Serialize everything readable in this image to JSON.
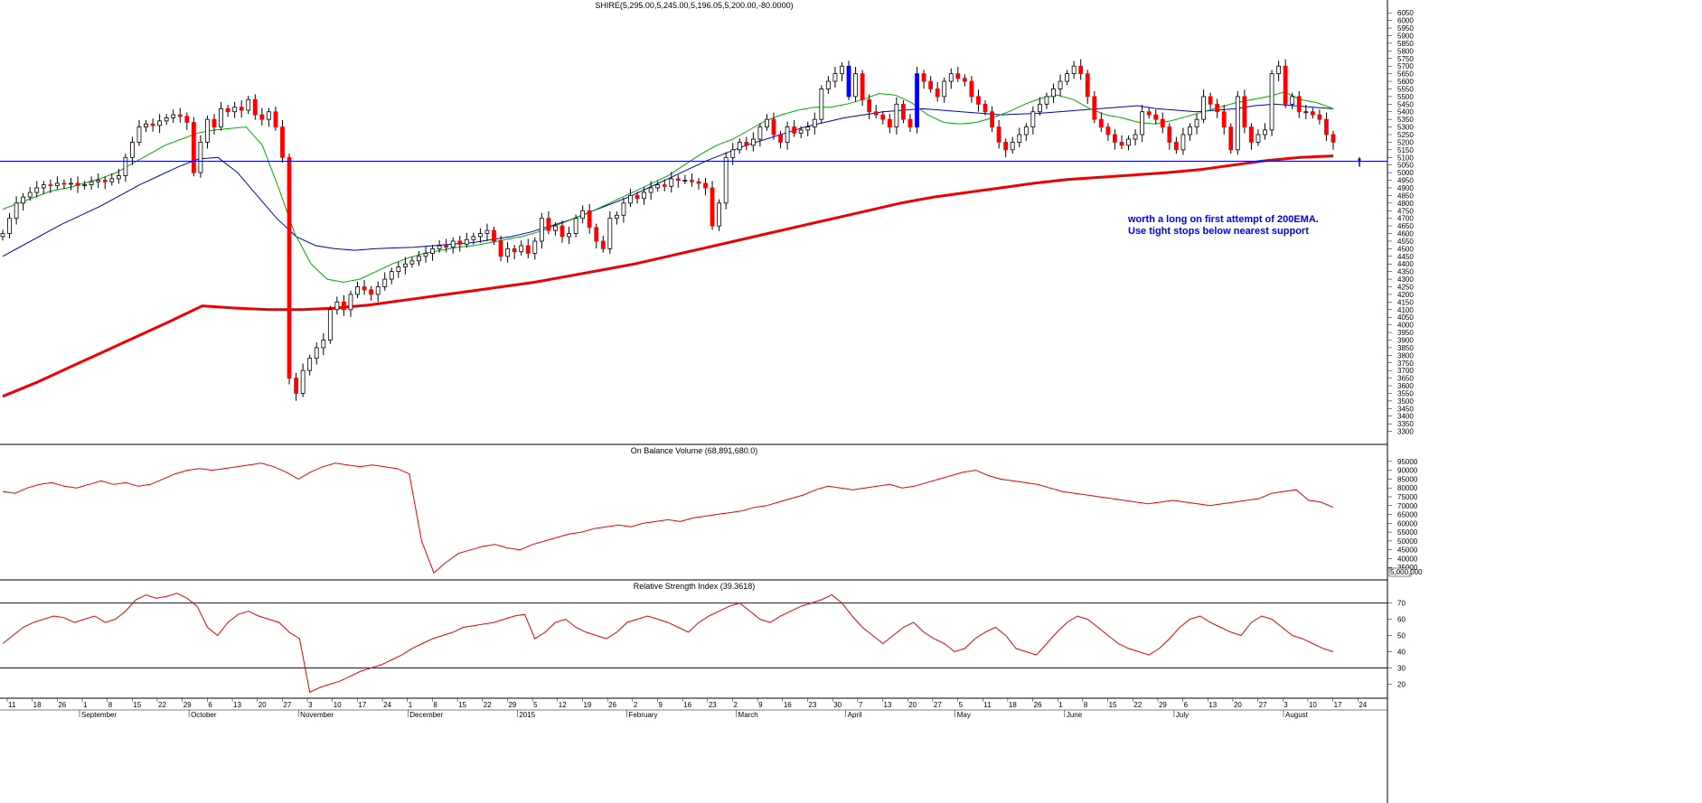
{
  "chart_data": [
    {
      "type": "candlestick",
      "title": "SHIRE(5,295.00,5,245.00,5,196.05,5,200.00,-80.0000)",
      "ylim": [
        3250,
        6075
      ],
      "y_ticks": [
        3300,
        3350,
        3400,
        3450,
        3500,
        3550,
        3600,
        3650,
        3700,
        3750,
        3800,
        3850,
        3900,
        3950,
        4000,
        4050,
        4100,
        4150,
        4200,
        4250,
        4300,
        4350,
        4400,
        4450,
        4500,
        4550,
        4600,
        4650,
        4700,
        4750,
        4800,
        4850,
        4900,
        4950,
        5000,
        5050,
        5100,
        5150,
        5200,
        5250,
        5300,
        5350,
        5400,
        5450,
        5500,
        5550,
        5600,
        5650,
        5700,
        5750,
        5800,
        5850,
        5900,
        5950,
        6000,
        6050
      ],
      "support_level": 5075,
      "annotation": [
        "worth a long on first attempt of 200EMA.",
        "Use tight stops below nearest support"
      ],
      "colors": {
        "up": "#ffffff",
        "down": "#ff0000",
        "outline": "#000000",
        "ema_fast": "#00aa00",
        "ema_slow": "#0000cc",
        "ema_200": "#ee0000",
        "support": "#0000cc",
        "highlight": "#0000ff"
      },
      "closes": [
        4600,
        4700,
        4800,
        4840,
        4870,
        4900,
        4920,
        4915,
        4930,
        4925,
        4930,
        4915,
        4920,
        4940,
        4950,
        4940,
        4960,
        4980,
        5100,
        5200,
        5300,
        5320,
        5310,
        5340,
        5360,
        5380,
        5370,
        5330,
        5000,
        5200,
        5350,
        5300,
        5420,
        5400,
        5430,
        5410,
        5480,
        5380,
        5350,
        5400,
        5300,
        5100,
        3650,
        3550,
        3700,
        3780,
        3850,
        3900,
        4100,
        4150,
        4100,
        4200,
        4250,
        4230,
        4200,
        4250,
        4300,
        4350,
        4380,
        4400,
        4420,
        4450,
        4470,
        4500,
        4520,
        4510,
        4550,
        4530,
        4560,
        4580,
        4600,
        4620,
        4550,
        4450,
        4500,
        4480,
        4520,
        4470,
        4550,
        4700,
        4620,
        4650,
        4580,
        4600,
        4700,
        4750,
        4640,
        4550,
        4500,
        4700,
        4720,
        4800,
        4850,
        4830,
        4870,
        4900,
        4920,
        4910,
        4960,
        4950,
        4950,
        4940,
        4930,
        4900,
        4650,
        4800,
        5100,
        5150,
        5200,
        5180,
        5220,
        5300,
        5350,
        5250,
        5200,
        5300,
        5260,
        5280,
        5300,
        5350,
        5550,
        5600,
        5650,
        5700,
        5500,
        5650,
        5480,
        5400,
        5380,
        5350,
        5300,
        5450,
        5350,
        5300,
        5650,
        5600,
        5550,
        5500,
        5600,
        5650,
        5620,
        5600,
        5500,
        5450,
        5400,
        5300,
        5200,
        5150,
        5200,
        5250,
        5300,
        5400,
        5450,
        5500,
        5550,
        5600,
        5650,
        5700,
        5650,
        5500,
        5350,
        5300,
        5250,
        5200,
        5180,
        5220,
        5250,
        5400,
        5380,
        5350,
        5300,
        5200,
        5150,
        5250,
        5300,
        5350,
        5500,
        5450,
        5400,
        5300,
        5150,
        5500,
        5300,
        5200,
        5250,
        5280,
        5650,
        5700,
        5450,
        5500,
        5400,
        5400,
        5380,
        5350,
        5250,
        5200
      ],
      "ema_fast": [
        4760,
        4800,
        4840,
        4880,
        4900,
        4930,
        4960,
        5000,
        5060,
        5120,
        5180,
        5220,
        5260,
        5280,
        5290,
        5300,
        5180,
        4900,
        4600,
        4400,
        4300,
        4280,
        4300,
        4350,
        4400,
        4440,
        4470,
        4490,
        4510,
        4520,
        4540,
        4560,
        4580,
        4610,
        4650,
        4690,
        4730,
        4780,
        4830,
        4880,
        4930,
        4980,
        5050,
        5120,
        5180,
        5220,
        5280,
        5340,
        5380,
        5410,
        5430,
        5430,
        5450,
        5480,
        5520,
        5510,
        5460,
        5380,
        5330,
        5320,
        5330,
        5360,
        5400,
        5450,
        5490,
        5510,
        5480,
        5420,
        5380,
        5360,
        5330,
        5320,
        5340,
        5370,
        5400,
        5430,
        5460,
        5480,
        5500,
        5530,
        5480,
        5460,
        5420
      ],
      "ema_slow": [
        4450,
        4520,
        4590,
        4660,
        4720,
        4780,
        4850,
        4920,
        4980,
        5040,
        5090,
        5100,
        5000,
        4850,
        4700,
        4580,
        4520,
        4500,
        4490,
        4500,
        4505,
        4510,
        4520,
        4530,
        4540,
        4560,
        4580,
        4610,
        4650,
        4690,
        4740,
        4790,
        4840,
        4900,
        4960,
        5020,
        5080,
        5130,
        5180,
        5220,
        5260,
        5300,
        5330,
        5360,
        5380,
        5400,
        5410,
        5420,
        5410,
        5400,
        5390,
        5380,
        5385,
        5390,
        5400,
        5410,
        5420,
        5430,
        5440,
        5420,
        5410,
        5400,
        5410,
        5420,
        5440,
        5450,
        5440,
        5430,
        5420
      ],
      "ema_200": [
        3530,
        3620,
        3720,
        3820,
        3920,
        4020,
        4125,
        4110,
        4100,
        4100,
        4110,
        4130,
        4160,
        4190,
        4220,
        4250,
        4280,
        4320,
        4360,
        4400,
        4450,
        4500,
        4550,
        4600,
        4650,
        4700,
        4750,
        4800,
        4840,
        4870,
        4900,
        4930,
        4955,
        4970,
        4985,
        5000,
        5020,
        5050,
        5080,
        5100,
        5110
      ],
      "month_labels": [
        "September",
        "October",
        "November",
        "December",
        "2015",
        "February",
        "March",
        "April",
        "May",
        "June",
        "July",
        "August"
      ],
      "day_labels": [
        "11",
        "18",
        "26",
        "1",
        "8",
        "15",
        "22",
        "29",
        "6",
        "13",
        "20",
        "27",
        "3",
        "10",
        "17",
        "24",
        "1",
        "8",
        "15",
        "22",
        "29",
        "5",
        "12",
        "19",
        "26",
        "2",
        "9",
        "16",
        "23",
        "2",
        "9",
        "16",
        "23",
        "30",
        "7",
        "13",
        "20",
        "27",
        "5",
        "11",
        "18",
        "26",
        "1",
        "8",
        "15",
        "22",
        "29",
        "6",
        "13",
        "20",
        "27",
        "3",
        "10",
        "17",
        "24"
      ]
    },
    {
      "type": "line",
      "title": "On Balance Volume (68,891,680.0)",
      "ylim": [
        30000,
        98000
      ],
      "y_ticks": [
        35000,
        40000,
        45000,
        50000,
        55000,
        60000,
        65000,
        70000,
        75000,
        80000,
        85000,
        90000,
        95000
      ],
      "y_tick_labels": [
        "35000",
        "40000",
        "45000",
        "50000",
        "55000",
        "60000",
        "65000",
        "70000",
        "75000",
        "80000",
        "85000",
        "90000",
        "95000"
      ],
      "bottom_tick_label": "5,000,000",
      "values": [
        78000,
        77000,
        80000,
        82000,
        83000,
        81000,
        80000,
        82000,
        84000,
        82000,
        83000,
        81000,
        82000,
        85000,
        88000,
        90000,
        91000,
        90000,
        91000,
        92000,
        93000,
        94000,
        92000,
        89000,
        85000,
        89000,
        92000,
        94000,
        93000,
        92000,
        93000,
        92000,
        91000,
        88000,
        50000,
        32000,
        38000,
        43000,
        45000,
        47000,
        48000,
        46000,
        45000,
        48000,
        50000,
        52000,
        54000,
        55000,
        57000,
        58000,
        59000,
        58000,
        60000,
        61000,
        62000,
        61000,
        63000,
        64000,
        65000,
        66000,
        67000,
        69000,
        70000,
        72000,
        74000,
        76000,
        79000,
        81000,
        80000,
        79000,
        80000,
        81000,
        82000,
        80000,
        81000,
        83000,
        85000,
        87000,
        89000,
        90000,
        87000,
        85000,
        84000,
        83000,
        82000,
        80000,
        78000,
        77000,
        76000,
        75000,
        74000,
        73000,
        72000,
        71000,
        72000,
        73000,
        72000,
        71000,
        70000,
        71000,
        72000,
        73000,
        74000,
        77000,
        78000,
        79000,
        73000,
        72000,
        69000
      ]
    },
    {
      "type": "line",
      "title": "Relative Strength Index (39.3618)",
      "ylim": [
        13,
        77
      ],
      "y_ticks": [
        20,
        30,
        40,
        50,
        60,
        70
      ],
      "y_tick_labels": [
        "20",
        "30",
        "40",
        "50",
        "60",
        "70"
      ],
      "ref_lines": [
        70,
        30
      ],
      "values": [
        45,
        50,
        55,
        58,
        60,
        62,
        61,
        58,
        60,
        62,
        58,
        60,
        65,
        72,
        75,
        73,
        74,
        76,
        73,
        68,
        55,
        50,
        58,
        63,
        65,
        62,
        60,
        58,
        52,
        48,
        15,
        18,
        20,
        22,
        25,
        28,
        30,
        32,
        35,
        38,
        42,
        45,
        48,
        50,
        52,
        55,
        56,
        57,
        58,
        60,
        62,
        63,
        48,
        52,
        58,
        60,
        55,
        52,
        50,
        48,
        52,
        58,
        60,
        62,
        60,
        58,
        55,
        52,
        58,
        62,
        65,
        68,
        70,
        65,
        60,
        58,
        62,
        65,
        68,
        70,
        72,
        75,
        70,
        62,
        55,
        50,
        45,
        50,
        55,
        58,
        52,
        48,
        45,
        40,
        42,
        48,
        52,
        55,
        50,
        42,
        40,
        38,
        45,
        52,
        58,
        62,
        60,
        55,
        50,
        45,
        42,
        40,
        38,
        42,
        48,
        55,
        60,
        62,
        58,
        55,
        52,
        50,
        58,
        62,
        60,
        55,
        50,
        48,
        45,
        42,
        40
      ]
    }
  ]
}
